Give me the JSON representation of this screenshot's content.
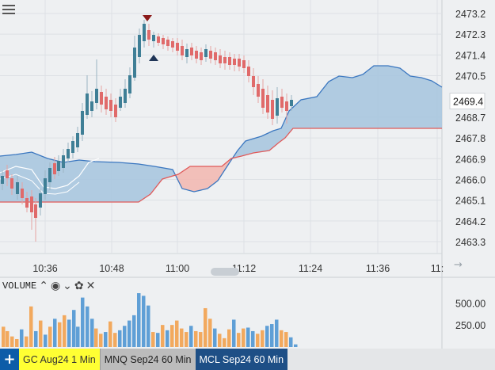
{
  "chart": {
    "y_axis_labels": [
      "2473.2",
      "2472.3",
      "2471.4",
      "2470.5",
      "2468.7",
      "2467.8",
      "2466.9",
      "2466.0",
      "2465.1",
      "2464.2",
      "2463.3"
    ],
    "current_price_label": "2469.4",
    "x_axis_labels": [
      "10:36",
      "10:48",
      "11:00",
      "11:12",
      "11:24",
      "11:36",
      "11:"
    ],
    "arrow_glyph": "→",
    "colors": {
      "up": "#3f7f96",
      "down": "#e06a6a",
      "cloud_bull": "#a9c6df",
      "cloud_bear": "#f2b9b2",
      "lead_line_a": "#3b77c0",
      "lead_line_b": "#e05a5a",
      "background": "#eef0f2",
      "grid": "#dde1e5"
    }
  },
  "volume": {
    "label": "VOLUME",
    "controls": {
      "up": "⌃",
      "eye": "◉",
      "down": "⌄",
      "gear": "✿",
      "close": "✕"
    },
    "y_axis_labels": [
      "500.00",
      "250.00"
    ],
    "colors": {
      "up": "#5f9fd6",
      "down": "#f2a95e"
    }
  },
  "tabs": {
    "add_glyph": "+",
    "items": [
      {
        "label": "GC Aug24 1 Min"
      },
      {
        "label": "MNQ Sep24 60 Min"
      },
      {
        "label": "MCL Sep24 60 Min"
      }
    ]
  }
}
